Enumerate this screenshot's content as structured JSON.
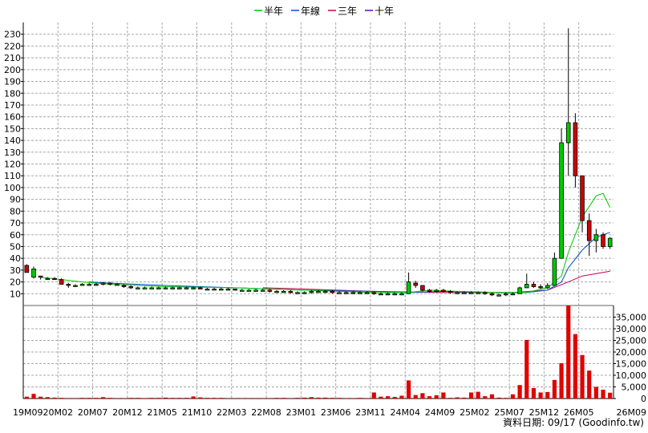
{
  "chart_data": [
    {
      "type": "candlestick",
      "legend": [
        {
          "name": "半年",
          "color": "#00c800"
        },
        {
          "name": "年線",
          "color": "#0050c8"
        },
        {
          "name": "三年",
          "color": "#c80050"
        },
        {
          "name": "十年",
          "color": "#6400c8"
        }
      ],
      "ylim": [
        0,
        240
      ],
      "y_ticks": [
        10,
        20,
        30,
        40,
        50,
        60,
        70,
        80,
        90,
        100,
        110,
        120,
        130,
        140,
        150,
        160,
        170,
        180,
        190,
        200,
        210,
        220,
        230
      ],
      "x_tick_labels": [
        "19M09",
        "20M02",
        "20M07",
        "20M12",
        "21M05",
        "21M10",
        "22M03",
        "22M08",
        "23M01",
        "23M06",
        "23M11",
        "24M04",
        "24M09",
        "25M02",
        "25M07",
        "25M12",
        "26M05",
        "26M09"
      ],
      "n_periods": 85,
      "up_color": "#00c800",
      "down_color": "#d00000",
      "candles": [
        [
          34,
          35,
          28,
          28
        ],
        [
          24,
          33,
          23,
          31
        ],
        [
          25,
          25,
          22,
          24
        ],
        [
          23,
          24,
          22,
          23
        ],
        [
          23,
          24,
          22,
          22
        ],
        [
          22,
          23,
          18,
          18
        ],
        [
          18,
          19,
          15,
          17
        ],
        [
          17,
          18,
          16,
          17
        ],
        [
          18,
          19,
          17,
          18
        ],
        [
          18,
          19,
          17,
          18
        ],
        [
          18,
          19,
          17,
          18
        ],
        [
          18,
          20,
          17,
          19
        ],
        [
          19,
          20,
          17,
          18
        ],
        [
          18,
          19,
          17,
          18
        ],
        [
          17,
          18,
          15,
          16
        ],
        [
          16,
          17,
          14,
          15
        ],
        [
          15,
          16,
          14,
          15
        ],
        [
          15,
          16,
          14,
          15
        ],
        [
          15,
          16,
          14,
          15
        ],
        [
          15,
          16,
          14,
          15
        ],
        [
          15,
          16,
          14,
          15
        ],
        [
          15,
          16,
          14,
          15
        ],
        [
          15,
          16,
          14,
          15
        ],
        [
          15,
          16,
          14,
          15
        ],
        [
          15,
          16,
          14,
          15
        ],
        [
          15,
          16,
          14,
          14
        ],
        [
          14,
          15,
          13,
          14
        ],
        [
          14,
          15,
          13,
          14
        ],
        [
          14,
          15,
          13,
          14
        ],
        [
          14,
          15,
          13,
          14
        ],
        [
          14,
          14,
          13,
          13
        ],
        [
          13,
          14,
          12,
          13
        ],
        [
          13,
          14,
          12,
          13
        ],
        [
          13,
          14,
          12,
          13
        ],
        [
          13,
          14,
          12,
          13
        ],
        [
          13,
          14,
          11,
          12
        ],
        [
          12,
          13,
          11,
          12
        ],
        [
          12,
          13,
          11,
          12
        ],
        [
          12,
          13,
          10,
          11
        ],
        [
          11,
          12,
          10,
          11
        ],
        [
          11,
          12,
          10,
          11
        ],
        [
          11,
          13,
          10,
          12
        ],
        [
          12,
          13,
          11,
          12
        ],
        [
          12,
          13,
          11,
          12
        ],
        [
          12,
          13,
          10,
          11
        ],
        [
          11,
          12,
          10,
          11
        ],
        [
          11,
          12,
          10,
          11
        ],
        [
          11,
          12,
          10,
          11
        ],
        [
          11,
          12,
          10,
          11
        ],
        [
          11,
          12,
          10,
          11
        ],
        [
          11,
          12,
          9,
          10
        ],
        [
          10,
          11,
          9,
          10
        ],
        [
          10,
          11,
          9,
          10
        ],
        [
          10,
          11,
          9,
          10
        ],
        [
          10,
          11,
          9,
          10
        ],
        [
          10,
          28,
          10,
          20
        ],
        [
          19,
          21,
          15,
          17
        ],
        [
          17,
          17,
          12,
          13
        ],
        [
          13,
          14,
          11,
          12
        ],
        [
          12,
          14,
          11,
          13
        ],
        [
          13,
          14,
          11,
          12
        ],
        [
          12,
          13,
          10,
          11
        ],
        [
          11,
          12,
          10,
          11
        ],
        [
          11,
          12,
          10,
          11
        ],
        [
          11,
          12,
          10,
          11
        ],
        [
          11,
          12,
          10,
          11
        ],
        [
          11,
          12,
          9,
          10
        ],
        [
          10,
          11,
          8,
          9
        ],
        [
          9,
          10,
          8,
          9
        ],
        [
          9,
          11,
          8,
          10
        ],
        [
          10,
          11,
          9,
          10
        ],
        [
          10,
          16,
          10,
          15
        ],
        [
          15,
          27,
          15,
          18
        ],
        [
          18,
          20,
          15,
          16
        ],
        [
          16,
          18,
          14,
          15
        ],
        [
          15,
          19,
          14,
          17
        ],
        [
          17,
          45,
          17,
          40
        ],
        [
          40,
          150,
          40,
          138
        ],
        [
          138,
          235,
          110,
          155
        ],
        [
          155,
          163,
          100,
          110
        ],
        [
          110,
          110,
          62,
          72
        ],
        [
          72,
          78,
          42,
          55
        ],
        [
          55,
          65,
          45,
          60
        ],
        [
          60,
          62,
          48,
          50
        ],
        [
          50,
          58,
          48,
          57
        ]
      ],
      "ma_half_year": [
        [
          2,
          24
        ],
        [
          5,
          22
        ],
        [
          8,
          20
        ],
        [
          12,
          18
        ],
        [
          20,
          16
        ],
        [
          30,
          15
        ],
        [
          40,
          13
        ],
        [
          50,
          11
        ],
        [
          55,
          11
        ],
        [
          58,
          13
        ],
        [
          62,
          12
        ],
        [
          68,
          11
        ],
        [
          72,
          11
        ],
        [
          75,
          15
        ],
        [
          77,
          25
        ],
        [
          78,
          45
        ],
        [
          80,
          75
        ],
        [
          82,
          93
        ],
        [
          83,
          95
        ],
        [
          84,
          83
        ]
      ],
      "ma_year": [
        [
          9,
          20
        ],
        [
          12,
          19
        ],
        [
          20,
          17
        ],
        [
          30,
          15
        ],
        [
          40,
          13
        ],
        [
          50,
          12
        ],
        [
          55,
          11
        ],
        [
          60,
          12
        ],
        [
          68,
          11
        ],
        [
          72,
          11
        ],
        [
          75,
          13
        ],
        [
          77,
          20
        ],
        [
          78,
          32
        ],
        [
          80,
          47
        ],
        [
          82,
          58
        ],
        [
          84,
          62
        ]
      ],
      "ma_3year": [
        [
          34,
          15
        ],
        [
          40,
          14
        ],
        [
          50,
          12
        ],
        [
          60,
          11
        ],
        [
          70,
          11
        ],
        [
          75,
          13
        ],
        [
          78,
          20
        ],
        [
          80,
          25
        ],
        [
          84,
          29
        ]
      ],
      "volume": {
        "ylim": [
          0,
          40000
        ],
        "ticks": [
          0,
          5000,
          10000,
          15000,
          20000,
          25000,
          30000,
          35000
        ],
        "tick_labels": [
          "0",
          "5,000",
          "10,000",
          "15,000",
          "20,000",
          "25,000",
          "30,000",
          "35,000"
        ],
        "values": [
          800,
          2000,
          800,
          600,
          400,
          300,
          200,
          200,
          300,
          300,
          300,
          600,
          300,
          200,
          200,
          300,
          300,
          200,
          300,
          300,
          400,
          300,
          300,
          300,
          900,
          500,
          300,
          300,
          300,
          200,
          200,
          200,
          200,
          200,
          200,
          200,
          300,
          300,
          200,
          300,
          400,
          600,
          400,
          400,
          300,
          300,
          200,
          200,
          300,
          200,
          2600,
          800,
          1000,
          700,
          1200,
          7800,
          1500,
          2300,
          1000,
          1400,
          2600,
          300,
          500,
          400,
          2600,
          2900,
          1000,
          1800,
          400,
          300,
          1800,
          5800,
          25200,
          4500,
          2600,
          2800,
          8000,
          15200,
          40000,
          27700,
          18700,
          12000,
          5000,
          3800,
          2500
        ]
      }
    }
  ],
  "source_label": "資料日期: 09/17  (Goodinfo.tw)"
}
